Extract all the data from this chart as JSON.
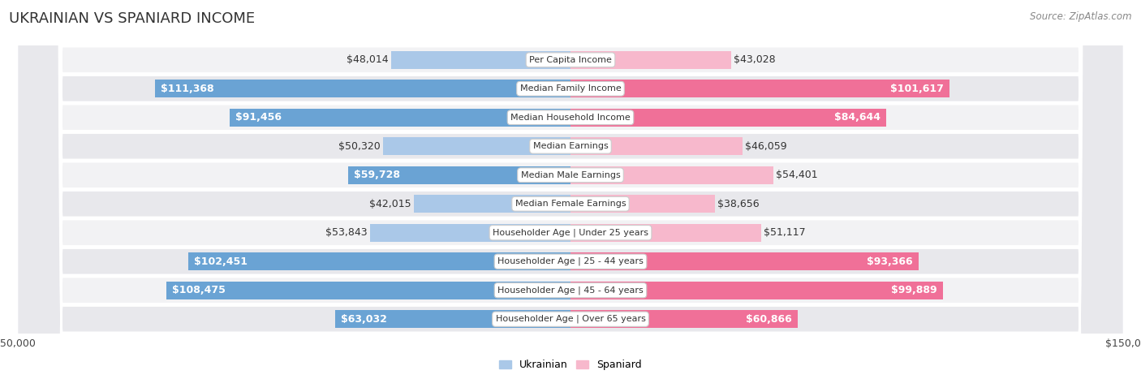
{
  "title": "UKRAINIAN VS SPANIARD INCOME",
  "source": "Source: ZipAtlas.com",
  "categories": [
    "Per Capita Income",
    "Median Family Income",
    "Median Household Income",
    "Median Earnings",
    "Median Male Earnings",
    "Median Female Earnings",
    "Householder Age | Under 25 years",
    "Householder Age | 25 - 44 years",
    "Householder Age | 45 - 64 years",
    "Householder Age | Over 65 years"
  ],
  "ukrainian_values": [
    48014,
    111368,
    91456,
    50320,
    59728,
    42015,
    53843,
    102451,
    108475,
    63032
  ],
  "spaniard_values": [
    43028,
    101617,
    84644,
    46059,
    54401,
    38656,
    51117,
    93366,
    99889,
    60866
  ],
  "ukrainian_labels": [
    "$48,014",
    "$111,368",
    "$91,456",
    "$50,320",
    "$59,728",
    "$42,015",
    "$53,843",
    "$102,451",
    "$108,475",
    "$63,032"
  ],
  "spaniard_labels": [
    "$43,028",
    "$101,617",
    "$84,644",
    "$46,059",
    "$54,401",
    "$38,656",
    "$51,117",
    "$93,366",
    "$99,889",
    "$60,866"
  ],
  "max_value": 150000,
  "ukrainian_color_light": "#aac8e8",
  "ukrainian_color_dark": "#6aa3d4",
  "spaniard_color_light": "#f7b8cc",
  "spaniard_color_dark": "#f07098",
  "row_bg_odd": "#f2f2f4",
  "row_bg_even": "#e8e8ec",
  "title_fontsize": 13,
  "label_fontsize": 9,
  "axis_label_fontsize": 9,
  "legend_fontsize": 9,
  "inside_label_threshold": 0.38
}
